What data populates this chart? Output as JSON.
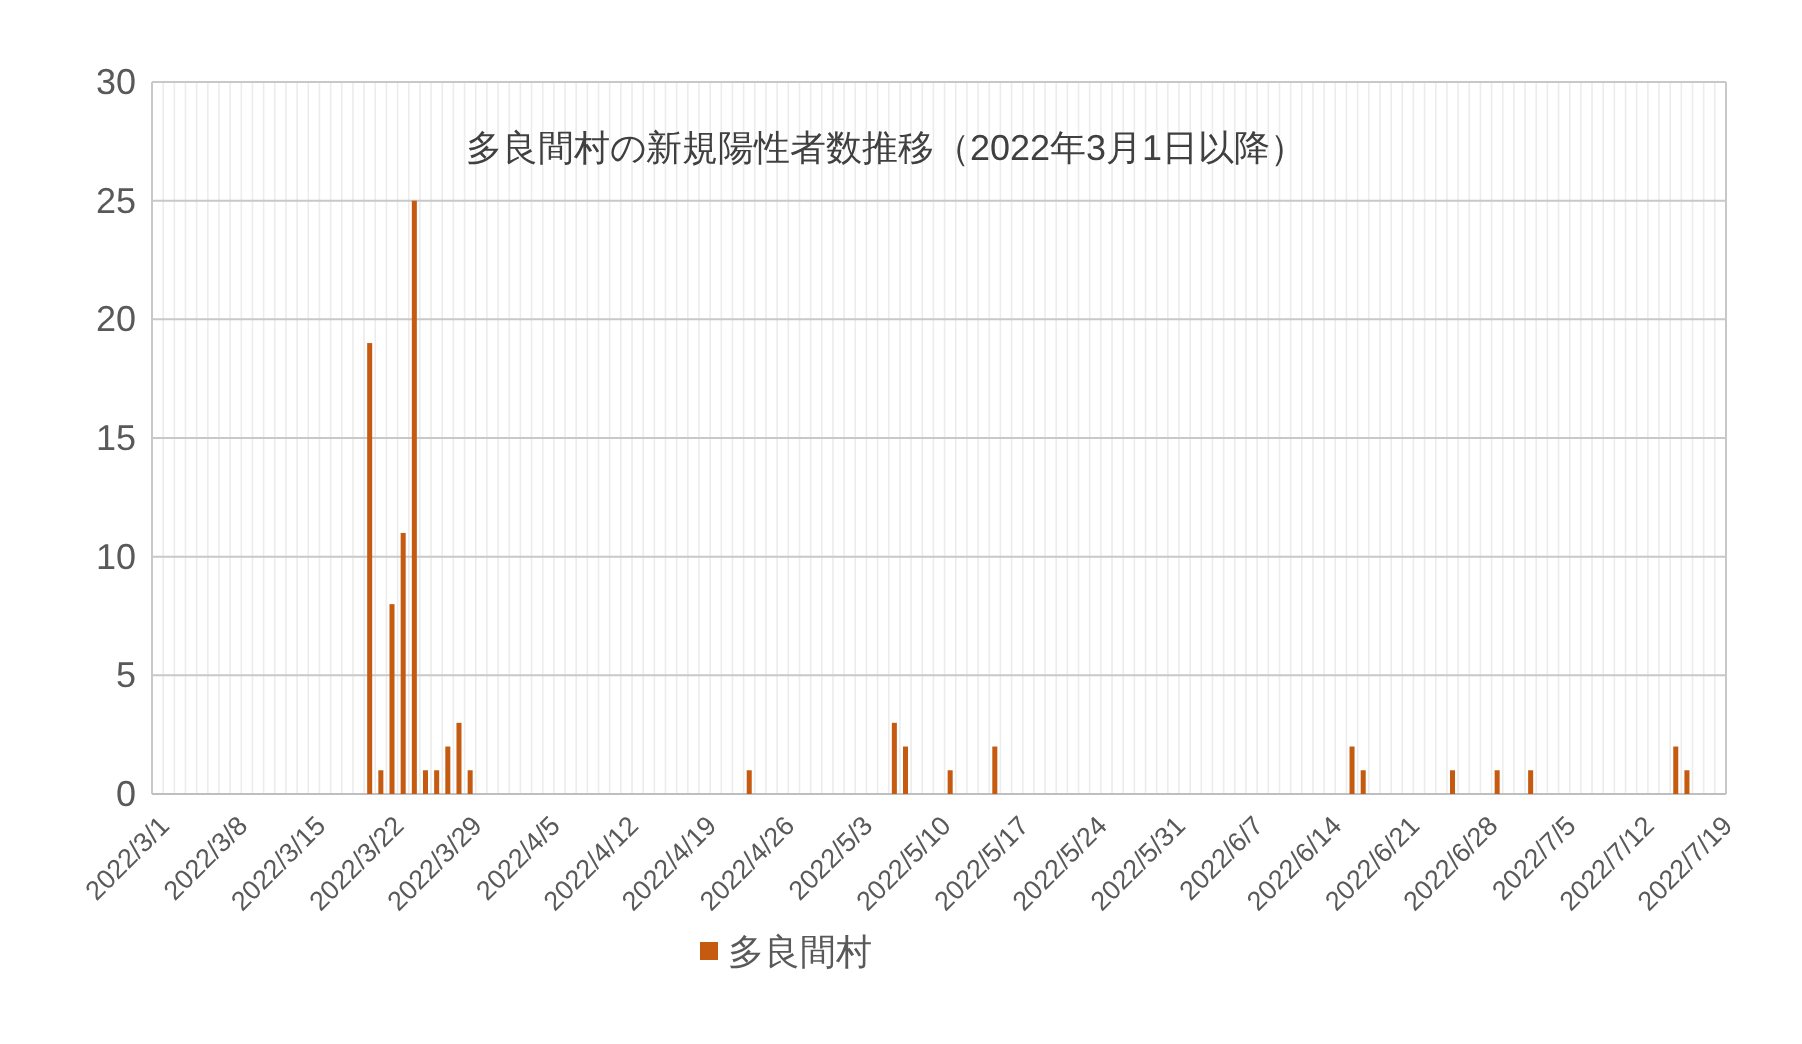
{
  "chart_data": {
    "type": "bar",
    "title": "多良間村の新規陽性者数推移（2022年3月1日以降）",
    "categories": [
      "2022/3/1",
      null,
      null,
      null,
      null,
      null,
      null,
      "2022/3/8",
      null,
      null,
      null,
      null,
      null,
      null,
      "2022/3/15",
      null,
      null,
      null,
      null,
      null,
      null,
      "2022/3/22",
      null,
      null,
      null,
      null,
      null,
      null,
      "2022/3/29",
      null,
      null,
      null,
      null,
      null,
      null,
      "2022/4/5",
      null,
      null,
      null,
      null,
      null,
      null,
      "2022/4/12",
      null,
      null,
      null,
      null,
      null,
      null,
      "2022/4/19",
      null,
      null,
      null,
      null,
      null,
      null,
      "2022/4/26",
      null,
      null,
      null,
      null,
      null,
      null,
      "2022/5/3",
      null,
      null,
      null,
      null,
      null,
      null,
      "2022/5/10",
      null,
      null,
      null,
      null,
      null,
      null,
      "2022/5/17",
      null,
      null,
      null,
      null,
      null,
      null,
      "2022/5/24",
      null,
      null,
      null,
      null,
      null,
      null,
      "2022/5/31",
      null,
      null,
      null,
      null,
      null,
      null,
      "2022/6/7",
      null,
      null,
      null,
      null,
      null,
      null,
      "2022/6/14",
      null,
      null,
      null,
      null,
      null,
      null,
      "2022/6/21",
      null,
      null,
      null,
      null,
      null,
      null,
      "2022/6/28",
      null,
      null,
      null,
      null,
      null,
      null,
      "2022/7/5",
      null,
      null,
      null,
      null,
      null,
      null,
      "2022/7/12",
      null,
      null,
      null,
      null,
      null,
      null,
      "2022/7/19"
    ],
    "series": [
      {
        "name": "多良間村",
        "color": "#c55a11",
        "values": [
          0,
          0,
          0,
          0,
          0,
          0,
          0,
          0,
          0,
          0,
          0,
          0,
          0,
          0,
          0,
          0,
          0,
          0,
          0,
          19,
          1,
          8,
          11,
          25,
          1,
          1,
          2,
          3,
          1,
          0,
          0,
          0,
          0,
          0,
          0,
          0,
          0,
          0,
          0,
          0,
          0,
          0,
          0,
          0,
          0,
          0,
          0,
          0,
          0,
          0,
          0,
          0,
          0,
          1,
          0,
          0,
          0,
          0,
          0,
          0,
          0,
          0,
          0,
          0,
          0,
          0,
          3,
          2,
          0,
          0,
          0,
          1,
          0,
          0,
          0,
          2,
          0,
          0,
          0,
          0,
          0,
          0,
          0,
          0,
          0,
          0,
          0,
          0,
          0,
          0,
          0,
          0,
          0,
          0,
          0,
          0,
          0,
          0,
          0,
          0,
          0,
          0,
          0,
          0,
          0,
          0,
          0,
          2,
          1,
          0,
          0,
          0,
          0,
          0,
          0,
          0,
          1,
          0,
          0,
          0,
          1,
          0,
          0,
          1,
          0,
          0,
          0,
          0,
          0,
          0,
          0,
          0,
          0,
          0,
          0,
          0,
          2,
          1,
          0,
          0,
          0
        ]
      }
    ],
    "ylim": [
      0,
      30
    ],
    "yticks": [
      0,
      5,
      10,
      15,
      20,
      25,
      30
    ],
    "grid": true,
    "legend": "bottom"
  }
}
